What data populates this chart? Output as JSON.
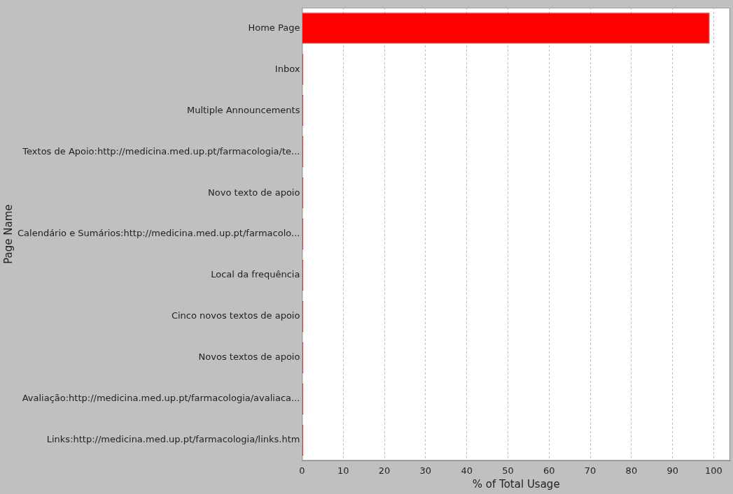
{
  "chart_data": {
    "type": "bar",
    "orientation": "horizontal",
    "categories": [
      "Home Page",
      "Inbox",
      "Multiple Announcements",
      "Textos de Apoio:http://medicina.med.up.pt/farmacologia/te...",
      "Novo texto de apoio",
      "Calendário e Sumários:http://medicina.med.up.pt/farmacolo...",
      "Local da frequência",
      "Cinco novos textos de apoio",
      "Novos textos de apoio",
      "Avaliação:http://medicina.med.up.pt/farmacologia/avaliaca...",
      "Links:http://medicina.med.up.pt/farmacologia/links.htm"
    ],
    "values": [
      99,
      0.3,
      0.3,
      0.3,
      0.3,
      0.3,
      0.3,
      0.3,
      0.3,
      0.3,
      0.3
    ],
    "color": "#ff0000",
    "xlabel": "% of Total Usage",
    "ylabel": "Page Name",
    "xlim": [
      0,
      104
    ],
    "xticks": [
      0,
      10,
      20,
      30,
      40,
      50,
      60,
      70,
      80,
      90,
      100
    ],
    "grid": "x",
    "legend": false
  }
}
